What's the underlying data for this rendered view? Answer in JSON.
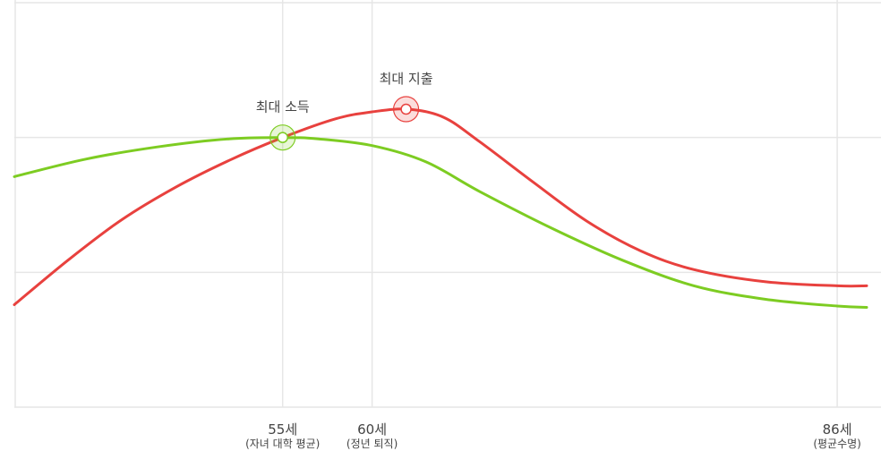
{
  "colors": {
    "income": "#7dcc22",
    "expense": "#e8413e",
    "grid": "#e6e6e6",
    "text": "#444444"
  },
  "chart_data": {
    "type": "line",
    "x_ticks": [
      {
        "x": 55,
        "label": "55세",
        "sublabel": "(자녀 대학 평균)"
      },
      {
        "x": 60,
        "label": "60세",
        "sublabel": "(정년 퇴직)"
      },
      {
        "x": 86,
        "label": "86세",
        "sublabel": "(평균수명)"
      }
    ],
    "xlim": [
      40,
      90
    ],
    "ylim": [
      0,
      3
    ],
    "y_gridlines": [
      1,
      2,
      3
    ],
    "grid": true,
    "series": [
      {
        "key": "income",
        "color": "#7dcc22",
        "points": [
          [
            40,
            1.71
          ],
          [
            44,
            1.84
          ],
          [
            48,
            1.93
          ],
          [
            52,
            1.99
          ],
          [
            55,
            2.0
          ],
          [
            57,
            1.99
          ],
          [
            60,
            1.94
          ],
          [
            63,
            1.82
          ],
          [
            66,
            1.6
          ],
          [
            70,
            1.33
          ],
          [
            74,
            1.09
          ],
          [
            78,
            0.9
          ],
          [
            82,
            0.8
          ],
          [
            86,
            0.75
          ],
          [
            90,
            0.74
          ]
        ]
      },
      {
        "key": "expense",
        "color": "#e8413e",
        "points": [
          [
            40,
            0.76
          ],
          [
            43,
            1.09
          ],
          [
            46,
            1.39
          ],
          [
            49,
            1.63
          ],
          [
            52,
            1.83
          ],
          [
            55,
            2.0
          ],
          [
            58,
            2.14
          ],
          [
            60,
            2.19
          ],
          [
            62,
            2.21
          ],
          [
            64,
            2.15
          ],
          [
            66,
            1.97
          ],
          [
            69,
            1.67
          ],
          [
            72,
            1.38
          ],
          [
            75,
            1.16
          ],
          [
            78,
            1.02
          ],
          [
            82,
            0.93
          ],
          [
            86,
            0.9
          ],
          [
            90,
            0.9
          ]
        ]
      }
    ],
    "annotations": [
      {
        "key": "max_income",
        "series": "income",
        "x": 55,
        "y": 2.0,
        "label": "최대 소득"
      },
      {
        "key": "max_expense",
        "series": "expense",
        "x": 61.9,
        "y": 2.21,
        "label": "최대 지출"
      }
    ]
  }
}
